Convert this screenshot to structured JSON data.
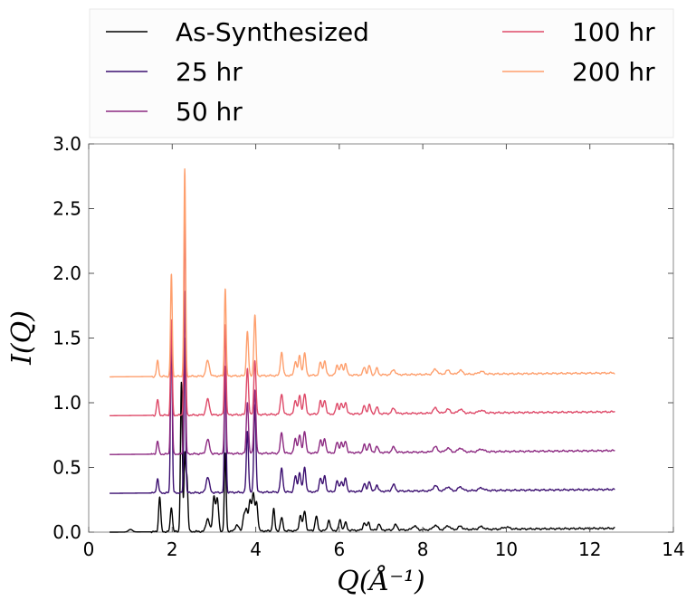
{
  "chart_data": {
    "type": "line",
    "xlabel": "Q(Å⁻¹)",
    "ylabel": "I(Q)",
    "xlim": [
      0,
      14
    ],
    "ylim": [
      0,
      3.0
    ],
    "x_ticks": [
      0,
      2,
      4,
      6,
      8,
      10,
      12,
      14
    ],
    "x_tick_labels": [
      "0",
      "2",
      "4",
      "6",
      "8",
      "10",
      "12",
      "14"
    ],
    "y_ticks": [
      0,
      0.5,
      1.0,
      1.5,
      2.0,
      2.5,
      3.0
    ],
    "y_tick_labels": [
      "0.0",
      "0.5",
      "1.0",
      "1.5",
      "2.0",
      "2.5",
      "3.0"
    ],
    "grid": false,
    "legend_position": "top, above plot, two columns",
    "q_range": [
      0.5,
      12.6
    ],
    "series": [
      {
        "name": "As-Synthesized",
        "color": "#000000",
        "baseline_start": 0.0,
        "baseline_end": 0.03,
        "onset": [
          0.6,
          1.1
        ],
        "peaks": [
          [
            1.0,
            0.02,
            0.05
          ],
          [
            1.7,
            0.27,
            0.025
          ],
          [
            1.98,
            0.19,
            0.025
          ],
          [
            2.22,
            1.15,
            0.022
          ],
          [
            2.3,
            0.55,
            0.02
          ],
          [
            2.35,
            0.42,
            0.025
          ],
          [
            2.85,
            0.1,
            0.04
          ],
          [
            3.0,
            0.27,
            0.03
          ],
          [
            3.08,
            0.25,
            0.03
          ],
          [
            3.27,
            0.6,
            0.022
          ],
          [
            3.55,
            0.05,
            0.04
          ],
          [
            3.72,
            0.13,
            0.03
          ],
          [
            3.78,
            0.15,
            0.025
          ],
          [
            3.86,
            0.24,
            0.03
          ],
          [
            3.94,
            0.28,
            0.03
          ],
          [
            4.02,
            0.22,
            0.03
          ],
          [
            4.43,
            0.17,
            0.025
          ],
          [
            4.62,
            0.1,
            0.03
          ],
          [
            5.07,
            0.12,
            0.03
          ],
          [
            5.17,
            0.15,
            0.03
          ],
          [
            5.45,
            0.11,
            0.03
          ],
          [
            5.75,
            0.08,
            0.03
          ],
          [
            6.02,
            0.08,
            0.03
          ],
          [
            6.15,
            0.06,
            0.03
          ],
          [
            6.6,
            0.06,
            0.03
          ],
          [
            6.7,
            0.06,
            0.03
          ],
          [
            6.95,
            0.05,
            0.03
          ],
          [
            7.35,
            0.04,
            0.04
          ],
          [
            7.8,
            0.03,
            0.05
          ],
          [
            8.3,
            0.035,
            0.05
          ],
          [
            8.6,
            0.03,
            0.05
          ],
          [
            8.9,
            0.025,
            0.05
          ],
          [
            9.4,
            0.02,
            0.06
          ],
          [
            10.0,
            0.015,
            0.08
          ]
        ]
      },
      {
        "name": "25 hr",
        "color": "#3b0f70",
        "baseline_start": 0.3,
        "baseline_end": 0.33,
        "peaks": [
          [
            1.65,
            0.11,
            0.025
          ],
          [
            1.98,
            1.33,
            0.02
          ],
          [
            2.3,
            1.2,
            0.02
          ],
          [
            2.85,
            0.12,
            0.04
          ],
          [
            3.27,
            0.97,
            0.02
          ],
          [
            3.8,
            0.47,
            0.025
          ],
          [
            3.98,
            0.68,
            0.025
          ],
          [
            4.62,
            0.18,
            0.03
          ],
          [
            4.95,
            0.12,
            0.03
          ],
          [
            5.05,
            0.15,
            0.03
          ],
          [
            5.17,
            0.19,
            0.03
          ],
          [
            5.55,
            0.11,
            0.03
          ],
          [
            5.65,
            0.12,
            0.03
          ],
          [
            5.95,
            0.08,
            0.03
          ],
          [
            6.05,
            0.08,
            0.03
          ],
          [
            6.15,
            0.1,
            0.03
          ],
          [
            6.6,
            0.06,
            0.03
          ],
          [
            6.72,
            0.08,
            0.03
          ],
          [
            6.9,
            0.05,
            0.03
          ],
          [
            7.3,
            0.05,
            0.04
          ],
          [
            8.3,
            0.04,
            0.05
          ],
          [
            8.6,
            0.03,
            0.05
          ],
          [
            8.9,
            0.03,
            0.05
          ],
          [
            9.4,
            0.02,
            0.06
          ]
        ]
      },
      {
        "name": "50 hr",
        "color": "#8c2981",
        "baseline_start": 0.6,
        "baseline_end": 0.63,
        "peaks": [
          [
            1.65,
            0.1,
            0.025
          ],
          [
            1.98,
            1.04,
            0.02
          ],
          [
            2.3,
            1.26,
            0.02
          ],
          [
            2.85,
            0.11,
            0.04
          ],
          [
            3.27,
            0.68,
            0.02
          ],
          [
            3.8,
            0.4,
            0.025
          ],
          [
            3.98,
            0.49,
            0.025
          ],
          [
            4.62,
            0.16,
            0.03
          ],
          [
            4.95,
            0.11,
            0.03
          ],
          [
            5.05,
            0.14,
            0.03
          ],
          [
            5.17,
            0.17,
            0.03
          ],
          [
            5.55,
            0.1,
            0.03
          ],
          [
            5.65,
            0.11,
            0.03
          ],
          [
            5.95,
            0.08,
            0.03
          ],
          [
            6.05,
            0.08,
            0.03
          ],
          [
            6.15,
            0.09,
            0.03
          ],
          [
            6.6,
            0.06,
            0.03
          ],
          [
            6.72,
            0.07,
            0.03
          ],
          [
            6.9,
            0.05,
            0.03
          ],
          [
            7.3,
            0.04,
            0.04
          ],
          [
            8.3,
            0.04,
            0.05
          ],
          [
            8.6,
            0.03,
            0.05
          ],
          [
            8.9,
            0.03,
            0.05
          ],
          [
            9.4,
            0.02,
            0.06
          ]
        ]
      },
      {
        "name": "100 hr",
        "color": "#de4968",
        "baseline_start": 0.9,
        "baseline_end": 0.93,
        "peaks": [
          [
            1.65,
            0.12,
            0.025
          ],
          [
            1.98,
            0.74,
            0.02
          ],
          [
            2.3,
            1.6,
            0.02
          ],
          [
            2.85,
            0.12,
            0.04
          ],
          [
            3.27,
            0.7,
            0.02
          ],
          [
            3.8,
            0.36,
            0.025
          ],
          [
            3.98,
            0.42,
            0.025
          ],
          [
            4.62,
            0.16,
            0.03
          ],
          [
            4.95,
            0.11,
            0.03
          ],
          [
            5.05,
            0.14,
            0.03
          ],
          [
            5.17,
            0.16,
            0.03
          ],
          [
            5.55,
            0.1,
            0.03
          ],
          [
            5.65,
            0.11,
            0.03
          ],
          [
            5.95,
            0.08,
            0.03
          ],
          [
            6.05,
            0.08,
            0.03
          ],
          [
            6.15,
            0.09,
            0.03
          ],
          [
            6.6,
            0.06,
            0.03
          ],
          [
            6.72,
            0.07,
            0.03
          ],
          [
            6.9,
            0.05,
            0.03
          ],
          [
            7.3,
            0.04,
            0.04
          ],
          [
            8.3,
            0.04,
            0.05
          ],
          [
            8.6,
            0.03,
            0.05
          ],
          [
            8.9,
            0.03,
            0.05
          ],
          [
            9.4,
            0.02,
            0.06
          ]
        ]
      },
      {
        "name": "200 hr",
        "color": "#fe9f6d",
        "baseline_start": 1.2,
        "baseline_end": 1.23,
        "peaks": [
          [
            1.65,
            0.12,
            0.025
          ],
          [
            1.98,
            0.79,
            0.02
          ],
          [
            2.3,
            1.6,
            0.02
          ],
          [
            2.85,
            0.12,
            0.04
          ],
          [
            3.27,
            0.68,
            0.02
          ],
          [
            3.8,
            0.34,
            0.025
          ],
          [
            3.98,
            0.47,
            0.025
          ],
          [
            4.62,
            0.18,
            0.03
          ],
          [
            4.95,
            0.11,
            0.03
          ],
          [
            5.05,
            0.15,
            0.03
          ],
          [
            5.17,
            0.17,
            0.03
          ],
          [
            5.55,
            0.1,
            0.03
          ],
          [
            5.65,
            0.11,
            0.03
          ],
          [
            5.95,
            0.08,
            0.03
          ],
          [
            6.05,
            0.08,
            0.03
          ],
          [
            6.15,
            0.09,
            0.03
          ],
          [
            6.6,
            0.06,
            0.03
          ],
          [
            6.72,
            0.07,
            0.03
          ],
          [
            6.9,
            0.05,
            0.03
          ],
          [
            7.3,
            0.04,
            0.04
          ],
          [
            8.3,
            0.04,
            0.05
          ],
          [
            8.6,
            0.03,
            0.05
          ],
          [
            8.9,
            0.03,
            0.05
          ],
          [
            9.4,
            0.02,
            0.06
          ]
        ]
      }
    ]
  }
}
